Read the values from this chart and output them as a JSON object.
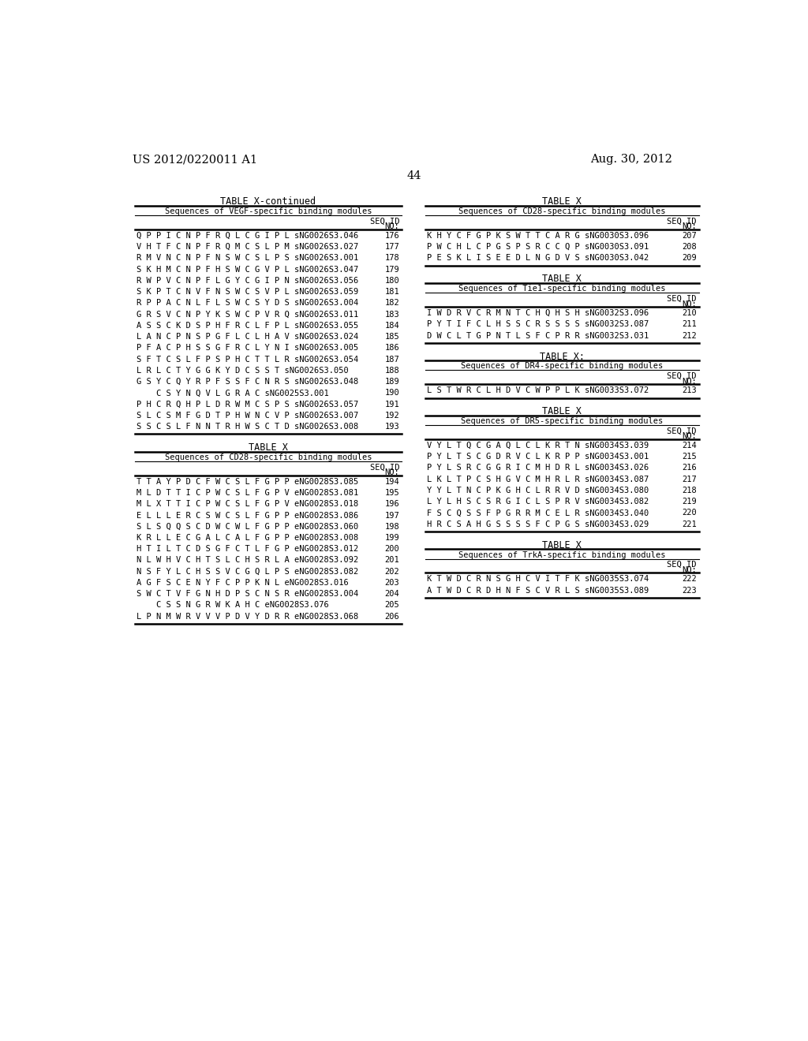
{
  "background_color": "#ffffff",
  "header_left": "US 2012/0220011 A1",
  "header_right": "Aug. 30, 2012",
  "page_number": "44",
  "left_table": {
    "title": "TABLE X-continued",
    "subtitle": "Sequences of VEGF-specific binding modules",
    "rows": [
      {
        "seq": "Q P P I C N P F R Q L C G I P L",
        "id": "sNG0026S3.046",
        "no": "176"
      },
      {
        "seq": "V H T F C N P F R Q M C S L P M",
        "id": "sNG0026S3.027",
        "no": "177"
      },
      {
        "seq": "R M V N C N P F N S W C S L P S",
        "id": "sNG0026S3.001",
        "no": "178"
      },
      {
        "seq": "S K H M C N P F H S W C G V P L",
        "id": "sNG0026S3.047",
        "no": "179"
      },
      {
        "seq": "R W P V C N P F L G Y C G I P N",
        "id": "sNG0026S3.056",
        "no": "180"
      },
      {
        "seq": "S K P T C N V F N S W C S V P L",
        "id": "sNG0026S3.059",
        "no": "181"
      },
      {
        "seq": "R P P A C N L F L S W C S Y D S",
        "id": "sNG0026S3.004",
        "no": "182"
      },
      {
        "seq": "G R S V C N P Y K S W C P V R Q",
        "id": "sNG0026S3.011",
        "no": "183"
      },
      {
        "seq": "A S S C K D S P H F R C L F P L",
        "id": "sNG0026S3.055",
        "no": "184"
      },
      {
        "seq": "L A N C P N S P G F L C L H A V",
        "id": "sNG0026S3.024",
        "no": "185"
      },
      {
        "seq": "P F A C P H S S G F R C L Y N I",
        "id": "sNG0026S3.005",
        "no": "186"
      },
      {
        "seq": "S F T C S L F P S P H C T T L R",
        "id": "sNG0026S3.054",
        "no": "187"
      },
      {
        "seq": "L R L C T Y G G K Y D C S S T",
        "id": "sNG0026S3.050",
        "no": "188"
      },
      {
        "seq": "G S Y C Q Y R P F S S F C N R S",
        "id": "sNG0026S3.048",
        "no": "189"
      },
      {
        "seq": "    C S Y N Q V L G R A C",
        "id": "sNG0025S3.001",
        "no": "190"
      },
      {
        "seq": "P H C R Q H P L D R W M C S P S",
        "id": "sNG0026S3.057",
        "no": "191"
      },
      {
        "seq": "S L C S M F G D T P H W N C V P",
        "id": "sNG0026S3.007",
        "no": "192"
      },
      {
        "seq": "S S C S L F N N T R H W S C T D",
        "id": "sNG0026S3.008",
        "no": "193"
      }
    ]
  },
  "left_table2": {
    "title": "TABLE X",
    "subtitle": "Sequences of CD28-specific binding modules",
    "rows": [
      {
        "seq": "T T A Y P D C F W C S L F G P P",
        "id": "eNG0028S3.085",
        "no": "194"
      },
      {
        "seq": "M L D T T I C P W C S L F G P V",
        "id": "eNG0028S3.081",
        "no": "195"
      },
      {
        "seq": "M L X T T I C P W C S L F G P V",
        "id": "eNG0028S3.018",
        "no": "196"
      },
      {
        "seq": "E L L L E R C S W C S L F G P P",
        "id": "eNG0028S3.086",
        "no": "197"
      },
      {
        "seq": "S L S Q Q S C D W C W L F G P P",
        "id": "eNG0028S3.060",
        "no": "198"
      },
      {
        "seq": "K R L L E C G A L C A L F G P P",
        "id": "eNG0028S3.008",
        "no": "199"
      },
      {
        "seq": "H T I L T C D S G F C T L F G P",
        "id": "eNG0028S3.012",
        "no": "200"
      },
      {
        "seq": "N L W H V C H T S L C H S R L A",
        "id": "eNG0028S3.092",
        "no": "201"
      },
      {
        "seq": "N S F Y L C H S S V C G Q L P S",
        "id": "eNG0028S3.082",
        "no": "202"
      },
      {
        "seq": "A G F S C E N Y F C P P K N L",
        "id": "eNG0028S3.016",
        "no": "203"
      },
      {
        "seq": "S W C T V F G N H D P S C N S R",
        "id": "eNG0028S3.004",
        "no": "204"
      },
      {
        "seq": "    C S S N G R W K A H C",
        "id": "eNG0028S3.076",
        "no": "205"
      },
      {
        "seq": "L P N M W R V V V P D V Y D R R",
        "id": "eNG0028S3.068",
        "no": "206"
      }
    ]
  },
  "right_table1": {
    "title": "TABLE X",
    "subtitle": "Sequences of CD28-specific binding modules",
    "rows": [
      {
        "seq": "K H Y C F G P K S W T T C A R G",
        "id": "sNG0030S3.096",
        "no": "207"
      },
      {
        "seq": "P W C H L C P G S P S R C C Q P",
        "id": "sNG0030S3.091",
        "no": "208"
      },
      {
        "seq": "P E S K L I S E E D L N G D V S",
        "id": "sNG0030S3.042",
        "no": "209"
      }
    ]
  },
  "right_table2": {
    "title": "TABLE X",
    "subtitle": "Sequences of Tie1-specific binding modules",
    "rows": [
      {
        "seq": "I W D R V C R M N T C H Q H S H",
        "id": "sNG0032S3.096",
        "no": "210"
      },
      {
        "seq": "P Y T I F C L H S S C R S S S S",
        "id": "sNG0032S3.087",
        "no": "211"
      },
      {
        "seq": "D W C L T G P N T L S F C P R R",
        "id": "sNG0032S3.031",
        "no": "212"
      }
    ]
  },
  "right_table3": {
    "title": "TABLE X:",
    "subtitle": "Sequences of DR4-specific binding modules",
    "rows": [
      {
        "seq": "L S T W R C L H D V C W P P L K",
        "id": "sNG0033S3.072",
        "no": "213"
      }
    ]
  },
  "right_table4": {
    "title": "TABLE X",
    "subtitle": "Sequences of DR5-specific binding modules",
    "rows": [
      {
        "seq": "V Y L T Q C G A Q L C L K R T N",
        "id": "sNG0034S3.039",
        "no": "214"
      },
      {
        "seq": "P Y L T S C G D R V C L K R P P",
        "id": "sNG0034S3.001",
        "no": "215"
      },
      {
        "seq": "P Y L S R C G G R I C M H D R L",
        "id": "sNG0034S3.026",
        "no": "216"
      },
      {
        "seq": "L K L T P C S H G V C M H R L R",
        "id": "sNG0034S3.087",
        "no": "217"
      },
      {
        "seq": "Y Y L T N C P K G H C L R R V D",
        "id": "sNG0034S3.080",
        "no": "218"
      },
      {
        "seq": "L Y L H S C S R G I C L S P R V",
        "id": "sNG0034S3.082",
        "no": "219"
      },
      {
        "seq": "F S C Q S S F P G R R M C E L R",
        "id": "sNG0034S3.040",
        "no": "220"
      },
      {
        "seq": "H R C S A H G S S S S F C P G S",
        "id": "sNG0034S3.029",
        "no": "221"
      }
    ]
  },
  "right_table5": {
    "title": "TABLE X",
    "subtitle": "Sequences of TrkA-specific binding modules",
    "rows": [
      {
        "seq": "K T W D C R N S G H C V I T F K",
        "id": "sNG0035S3.074",
        "no": "222"
      },
      {
        "seq": "A T W D C R D H N F S C V R L S",
        "id": "sNG0035S3.089",
        "no": "223"
      }
    ]
  }
}
